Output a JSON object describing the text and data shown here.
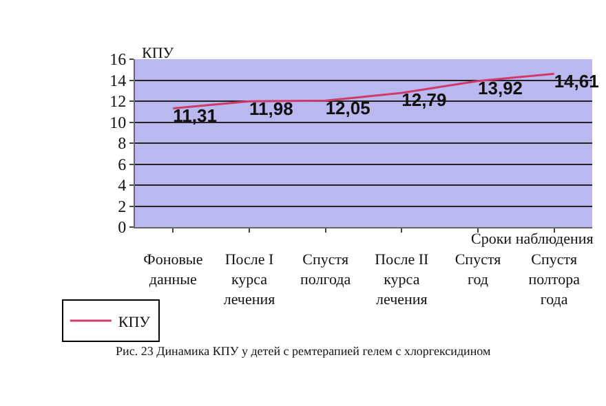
{
  "chart_data": {
    "type": "line",
    "categories": [
      "Фоновые\nданные",
      "После I\nкурса\nлечения",
      "Спустя\nполгода",
      "После II\nкурса\nлечения",
      "Спустя\nгод",
      "Спустя\nполтора\nгода"
    ],
    "series": [
      {
        "name": "КПУ",
        "color": "#d03a6a",
        "values": [
          11.31,
          11.98,
          12.05,
          12.79,
          13.92,
          14.61
        ],
        "value_labels": [
          "11,31",
          "11,98",
          "12,05",
          "12,79",
          "13,92",
          "14,61"
        ]
      }
    ],
    "ylabel": "КПУ",
    "xlabel": "Сроки наблюдения",
    "ylim": [
      0,
      16
    ],
    "yticks": [
      0,
      2,
      4,
      6,
      8,
      10,
      12,
      14,
      16
    ],
    "grid": "y",
    "legend": "bottom left",
    "marker": "none",
    "line_style": "solid",
    "annotations": [
      "Рис. 23 Динамика КПУ у детей с ремтерапией гелем с хлоргексидином"
    ]
  }
}
